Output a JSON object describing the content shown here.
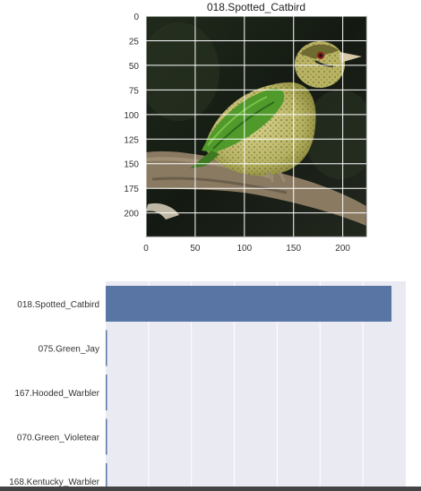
{
  "chart_data": [
    {
      "type": "image",
      "title": "018.Spotted_Catbird",
      "x_ticks": [
        0,
        50,
        100,
        150,
        200
      ],
      "y_ticks": [
        0,
        25,
        50,
        75,
        100,
        125,
        150,
        175,
        200
      ],
      "xlim": [
        0,
        224
      ],
      "ylim": [
        224,
        0
      ],
      "grid": true,
      "image_subject": "bird-photo",
      "colors": {
        "background": "#1c2418",
        "bird_back": "#4f9a2a",
        "bird_belly": "#c9c27a",
        "branch": "#8a7a62"
      }
    },
    {
      "type": "bar",
      "orientation": "horizontal",
      "categories": [
        "018.Spotted_Catbird",
        "075.Green_Jay",
        "167.Hooded_Warbler",
        "070.Green_Violetear",
        "168.Kentucky_Warbler"
      ],
      "values": [
        1.0,
        0.0,
        0.0,
        0.0,
        0.0
      ],
      "xlim": [
        0,
        1.05
      ],
      "grid": true,
      "colors": {
        "bar": "#5975a4",
        "axes_bg": "#eaeaf2",
        "grid": "#ffffff"
      }
    }
  ]
}
